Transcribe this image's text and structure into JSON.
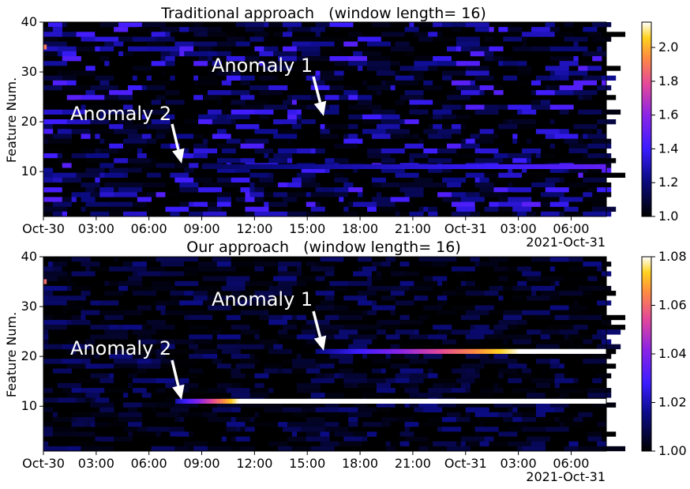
{
  "chart_data": [
    {
      "type": "heatmap",
      "title": "Traditional approach   (window length= 16)",
      "ylabel": "Feature Num.",
      "xlabel": "",
      "x_tick_labels": [
        "Oct-30",
        "03:00",
        "06:00",
        "09:00",
        "12:00",
        "15:00",
        "18:00",
        "21:00",
        "Oct-31",
        "03:00",
        "06:00"
      ],
      "x_offset_label": "2021-Oct-31",
      "y_ticks": [
        10,
        20,
        30,
        40
      ],
      "ylim": [
        1,
        40
      ],
      "x_range": [
        "2021-10-30 00:00",
        "2021-10-31 08:00"
      ],
      "colormap": "gnuplot2",
      "colorbar": {
        "range": [
          1.0,
          2.15
        ],
        "ticks": [
          "1.0",
          "1.2",
          "1.4",
          "1.6",
          "1.8",
          "2.0"
        ]
      },
      "background_level": "low random noise (1.0 – 1.2)",
      "bands": [
        {
          "feature": 11,
          "start": "2021-10-30 09:00",
          "end": "2021-10-31 08:00",
          "value_start": 1.15,
          "value_end": 1.5
        },
        {
          "feature": 35,
          "start": "2021-10-30 00:00",
          "end": "2021-10-30 00:10",
          "value_start": 1.9,
          "value_end": 1.9
        }
      ],
      "annotations": [
        {
          "text": "Anomaly 1",
          "arrow_to": {
            "x": "2021-10-30 15:45",
            "y": 21
          }
        },
        {
          "text": "Anomaly 2",
          "arrow_to": {
            "x": "2021-10-30 07:20",
            "y": 11
          }
        }
      ]
    },
    {
      "type": "heatmap",
      "title": "Our approach   (window length= 16)",
      "ylabel": "Feature Num.",
      "xlabel": "",
      "x_tick_labels": [
        "Oct-30",
        "03:00",
        "06:00",
        "09:00",
        "12:00",
        "15:00",
        "18:00",
        "21:00",
        "Oct-31",
        "03:00",
        "06:00"
      ],
      "x_offset_label": "2021-Oct-31",
      "y_ticks": [
        10,
        20,
        30,
        40
      ],
      "ylim": [
        1,
        40
      ],
      "x_range": [
        "2021-10-30 00:00",
        "2021-10-31 08:00"
      ],
      "colormap": "gnuplot2",
      "colorbar": {
        "range": [
          1.0,
          1.08
        ],
        "ticks": [
          "1.00",
          "1.02",
          "1.04",
          "1.06",
          "1.08"
        ]
      },
      "background_level": "low random noise (1.00 – 1.015)",
      "bands": [
        {
          "feature": 11,
          "start": "2021-10-30 07:30",
          "end": "2021-10-31 08:00",
          "value_start": 1.02,
          "value_end": 1.08,
          "saturates_at": "2021-10-30 11:00"
        },
        {
          "feature": 21,
          "start": "2021-10-30 15:30",
          "end": "2021-10-31 08:00",
          "value_start": 1.015,
          "value_end": 1.08,
          "saturates_at": "2021-10-31 03:00"
        },
        {
          "feature": 35,
          "start": "2021-10-30 00:00",
          "end": "2021-10-30 00:10",
          "value_start": 1.06,
          "value_end": 1.06
        }
      ],
      "annotations": [
        {
          "text": "Anomaly 1",
          "arrow_to": {
            "x": "2021-10-30 15:45",
            "y": 21
          }
        },
        {
          "text": "Anomaly 2",
          "arrow_to": {
            "x": "2021-10-30 07:20",
            "y": 11
          }
        }
      ]
    }
  ]
}
